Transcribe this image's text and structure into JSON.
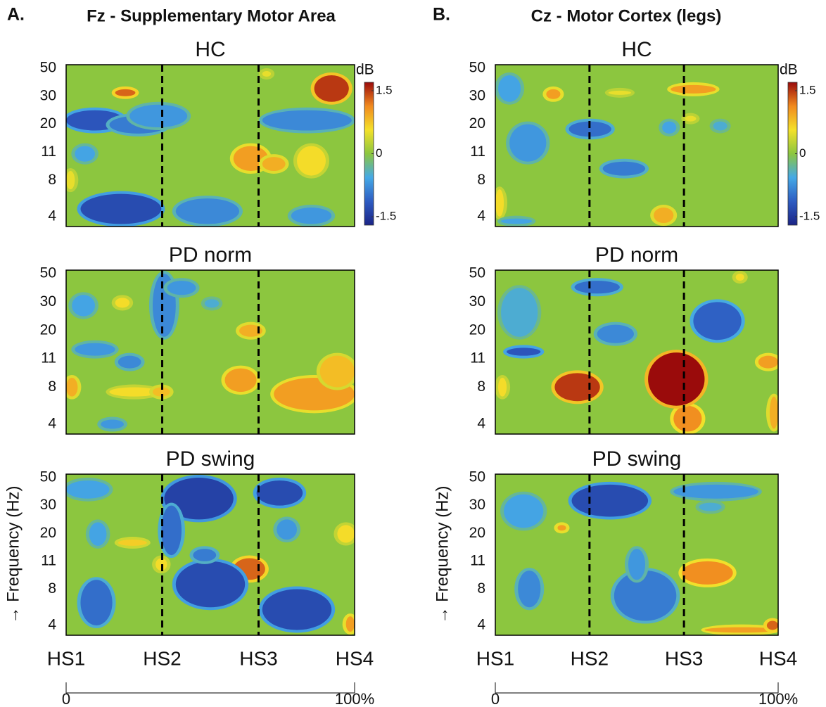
{
  "chart_data": [
    {
      "type": "heatmap",
      "label": "A.",
      "title": "Fz - Supplementary Motor Area",
      "y_label": "→ Frequency (Hz)",
      "colorbar_label": "dB",
      "clim": [
        -1.7,
        1.7
      ],
      "cticks": [
        1.5,
        0,
        -1.5
      ],
      "colormap": [
        "#1b2486",
        "#2e5cc2",
        "#45a9e6",
        "#8cc63f",
        "#f4e12a",
        "#f18a1f",
        "#9a0b0b"
      ],
      "xlim": [
        0,
        100
      ],
      "xticks": [
        {
          "value": 0,
          "label": "HS1"
        },
        {
          "value": 33.3,
          "label": "HS2"
        },
        {
          "value": 66.7,
          "label": "HS3"
        },
        {
          "value": 100,
          "label": "HS4"
        }
      ],
      "yticks": [
        50,
        30,
        20,
        11,
        8,
        4
      ],
      "scale_ticks": [
        0,
        {
          "value": 100,
          "label": "100%"
        }
      ],
      "panels": [
        {
          "title": "HC",
          "blobs": [
            {
              "x": [
                17,
                24
              ],
              "y": [
                30,
                35
              ],
              "value": 1.3
            },
            {
              "x": [
                86,
                98
              ],
              "y": [
                28,
                45
              ],
              "value": 1.5
            },
            {
              "x": [
                0,
                20
              ],
              "y": [
                18,
                25
              ],
              "value": -1.2
            },
            {
              "x": [
                15,
                35
              ],
              "y": [
                17,
                23
              ],
              "value": -0.9
            },
            {
              "x": [
                22,
                42
              ],
              "y": [
                19,
                27
              ],
              "value": -0.7
            },
            {
              "x": [
                68,
                99
              ],
              "y": [
                18,
                25
              ],
              "value": -0.8
            },
            {
              "x": [
                3,
                10
              ],
              "y": [
                10,
                13
              ],
              "value": -0.6
            },
            {
              "x": [
                58,
                70
              ],
              "y": [
                9,
                13
              ],
              "value": 1.0
            },
            {
              "x": [
                68,
                76
              ],
              "y": [
                9,
                10.5
              ],
              "value": 0.9
            },
            {
              "x": [
                80,
                90
              ],
              "y": [
                8.5,
                13
              ],
              "value": 0.6
            },
            {
              "x": [
                0,
                3
              ],
              "y": [
                7,
                9
              ],
              "value": 0.5
            },
            {
              "x": [
                5,
                33
              ],
              "y": [
                3.2,
                6.5
              ],
              "value": -1.3
            },
            {
              "x": [
                38,
                60
              ],
              "y": [
                3.2,
                6
              ],
              "value": -0.8
            },
            {
              "x": [
                78,
                92
              ],
              "y": [
                3.2,
                5
              ],
              "value": -0.7
            },
            {
              "x": [
                68,
                71
              ],
              "y": [
                44,
                48
              ],
              "value": 0.5
            }
          ]
        },
        {
          "title": "PD norm",
          "blobs": [
            {
              "x": [
                17,
                22
              ],
              "y": [
                28,
                33
              ],
              "value": 0.6
            },
            {
              "x": [
                30,
                38
              ],
              "y": [
                18,
                50
              ],
              "value": -0.8
            },
            {
              "x": [
                35,
                45
              ],
              "y": [
                35,
                45
              ],
              "value": -0.7
            },
            {
              "x": [
                2,
                10
              ],
              "y": [
                25,
                35
              ],
              "value": -0.6
            },
            {
              "x": [
                3,
                17
              ],
              "y": [
                12,
                16
              ],
              "value": -0.7
            },
            {
              "x": [
                18,
                26
              ],
              "y": [
                10,
                12
              ],
              "value": -0.8
            },
            {
              "x": [
                60,
                68
              ],
              "y": [
                18,
                22
              ],
              "value": 0.9
            },
            {
              "x": [
                55,
                66
              ],
              "y": [
                7.5,
                10
              ],
              "value": 1.0
            },
            {
              "x": [
                72,
                100
              ],
              "y": [
                5.5,
                9
              ],
              "value": 1.0
            },
            {
              "x": [
                88,
                100
              ],
              "y": [
                8,
                12
              ],
              "value": 0.8
            },
            {
              "x": [
                15,
                32
              ],
              "y": [
                7,
                8
              ],
              "value": 0.6
            },
            {
              "x": [
                30,
                36
              ],
              "y": [
                7,
                8
              ],
              "value": 0.8
            },
            {
              "x": [
                0,
                4
              ],
              "y": [
                7,
                9
              ],
              "value": 0.9
            },
            {
              "x": [
                12,
                20
              ],
              "y": [
                3.5,
                4.5
              ],
              "value": -0.7
            },
            {
              "x": [
                48,
                53
              ],
              "y": [
                28,
                32
              ],
              "value": -0.5
            }
          ]
        },
        {
          "title": "PD swing",
          "blobs": [
            {
              "x": [
                34,
                58
              ],
              "y": [
                25,
                50
              ],
              "value": -1.4
            },
            {
              "x": [
                33,
                40
              ],
              "y": [
                13,
                30
              ],
              "value": -1.0
            },
            {
              "x": [
                66,
                82
              ],
              "y": [
                30,
                48
              ],
              "value": -1.3
            },
            {
              "x": [
                73,
                80
              ],
              "y": [
                18,
                25
              ],
              "value": -0.7
            },
            {
              "x": [
                94,
                100
              ],
              "y": [
                17,
                23
              ],
              "value": 0.6
            },
            {
              "x": [
                0,
                15
              ],
              "y": [
                35,
                48
              ],
              "value": -0.6
            },
            {
              "x": [
                8,
                14
              ],
              "y": [
                16,
                24
              ],
              "value": -0.6
            },
            {
              "x": [
                18,
                28
              ],
              "y": [
                16,
                18
              ],
              "value": 0.7
            },
            {
              "x": [
                58,
                69
              ],
              "y": [
                9,
                12
              ],
              "value": 1.3
            },
            {
              "x": [
                38,
                62
              ],
              "y": [
                6,
                11
              ],
              "value": -1.3
            },
            {
              "x": [
                44,
                52
              ],
              "y": [
                11,
                15
              ],
              "value": -0.9
            },
            {
              "x": [
                5,
                16
              ],
              "y": [
                4,
                9
              ],
              "value": -1.0
            },
            {
              "x": [
                68,
                92
              ],
              "y": [
                3.5,
                8
              ],
              "value": -1.3
            },
            {
              "x": [
                97,
                100
              ],
              "y": [
                3.3,
                5
              ],
              "value": 1.0
            },
            {
              "x": [
                31,
                35
              ],
              "y": [
                10,
                12
              ],
              "value": 0.6
            }
          ]
        }
      ]
    },
    {
      "type": "heatmap",
      "label": "B.",
      "title": "Cz - Motor Cortex (legs)",
      "y_label": "→ Frequency (Hz)",
      "colorbar_label": "dB",
      "clim": [
        -1.7,
        1.7
      ],
      "cticks": [
        1.5,
        0,
        -1.5
      ],
      "colormap": [
        "#1b2486",
        "#2e5cc2",
        "#45a9e6",
        "#8cc63f",
        "#f4e12a",
        "#f18a1f",
        "#9a0b0b"
      ],
      "xlim": [
        0,
        100
      ],
      "xticks": [
        {
          "value": 0,
          "label": "HS1"
        },
        {
          "value": 33.3,
          "label": "HS2"
        },
        {
          "value": 66.7,
          "label": "HS3"
        },
        {
          "value": 100,
          "label": "HS4"
        }
      ],
      "yticks": [
        50,
        30,
        20,
        11,
        8,
        4
      ],
      "scale_ticks": [
        0,
        {
          "value": 100,
          "label": "100%"
        }
      ],
      "panels": [
        {
          "title": "HC",
          "blobs": [
            {
              "x": [
                18,
                23
              ],
              "y": [
                29,
                35
              ],
              "value": 1.0
            },
            {
              "x": [
                62,
                78
              ],
              "y": [
                32,
                38
              ],
              "value": 1.0
            },
            {
              "x": [
                40,
                48
              ],
              "y": [
                31,
                34
              ],
              "value": 0.5
            },
            {
              "x": [
                1,
                9
              ],
              "y": [
                28,
                45
              ],
              "value": -0.6
            },
            {
              "x": [
                5,
                18
              ],
              "y": [
                10,
                20
              ],
              "value": -0.7
            },
            {
              "x": [
                26,
                41
              ],
              "y": [
                16,
                21
              ],
              "value": -1.0
            },
            {
              "x": [
                38,
                53
              ],
              "y": [
                8.5,
                10
              ],
              "value": -0.9
            },
            {
              "x": [
                59,
                64
              ],
              "y": [
                17,
                21
              ],
              "value": -0.6
            },
            {
              "x": [
                77,
                82
              ],
              "y": [
                18,
                21
              ],
              "value": -0.5
            },
            {
              "x": [
                56,
                63
              ],
              "y": [
                3.3,
                5
              ],
              "value": 0.9
            },
            {
              "x": [
                0,
                3
              ],
              "y": [
                4,
                7
              ],
              "value": 0.6
            },
            {
              "x": [
                2,
                13
              ],
              "y": [
                3.2,
                3.8
              ],
              "value": -0.6
            },
            {
              "x": [
                67,
                71
              ],
              "y": [
                21,
                23
              ],
              "value": 0.5
            }
          ]
        },
        {
          "title": "PD norm",
          "blobs": [
            {
              "x": [
                2,
                15
              ],
              "y": [
                18,
                40
              ],
              "value": -0.5
            },
            {
              "x": [
                4,
                16
              ],
              "y": [
                12,
                14.5
              ],
              "value": -1.2
            },
            {
              "x": [
                28,
                44
              ],
              "y": [
                36,
                45
              ],
              "value": -1.0
            },
            {
              "x": [
                36,
                49
              ],
              "y": [
                16,
                22
              ],
              "value": -0.8
            },
            {
              "x": [
                70,
                87
              ],
              "y": [
                17,
                30
              ],
              "value": -1.1
            },
            {
              "x": [
                21,
                37
              ],
              "y": [
                6.5,
                9.5
              ],
              "value": 1.5
            },
            {
              "x": [
                63,
                73
              ],
              "y": [
                3.2,
                6
              ],
              "value": 1.1
            },
            {
              "x": [
                54,
                74
              ],
              "y": [
                6,
                13
              ],
              "value": 1.7
            },
            {
              "x": [
                93,
                100
              ],
              "y": [
                10,
                12
              ],
              "value": 1.0
            },
            {
              "x": [
                97,
                100
              ],
              "y": [
                3.5,
                7
              ],
              "value": 0.9
            },
            {
              "x": [
                1,
                4
              ],
              "y": [
                7,
                9
              ],
              "value": 0.6
            },
            {
              "x": [
                85,
                88
              ],
              "y": [
                45,
                50
              ],
              "value": 0.6
            }
          ]
        },
        {
          "title": "PD swing",
          "blobs": [
            {
              "x": [
                27,
                54
              ],
              "y": [
                26,
                45
              ],
              "value": -1.3
            },
            {
              "x": [
                63,
                93
              ],
              "y": [
                35,
                45
              ],
              "value": -0.7
            },
            {
              "x": [
                3,
                17
              ],
              "y": [
                22,
                38
              ],
              "value": -0.6
            },
            {
              "x": [
                22,
                25
              ],
              "y": [
                21,
                23
              ],
              "value": 1.0
            },
            {
              "x": [
                8,
                16
              ],
              "y": [
                6,
                10
              ],
              "value": -0.8
            },
            {
              "x": [
                42,
                64
              ],
              "y": [
                4.5,
                10
              ],
              "value": -0.9
            },
            {
              "x": [
                47,
                53
              ],
              "y": [
                9,
                15
              ],
              "value": -0.7
            },
            {
              "x": [
                66,
                84
              ],
              "y": [
                8.5,
                11
              ],
              "value": 1.1
            },
            {
              "x": [
                74,
                100
              ],
              "y": [
                3.2,
                3.8
              ],
              "value": 1.0
            },
            {
              "x": [
                96,
                100
              ],
              "y": [
                3.5,
                4.5
              ],
              "value": 1.3
            },
            {
              "x": [
                72,
                80
              ],
              "y": [
                28,
                32
              ],
              "value": -0.5
            }
          ]
        }
      ]
    }
  ]
}
